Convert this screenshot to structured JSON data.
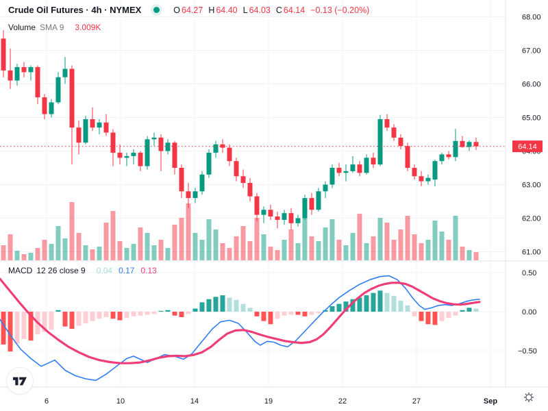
{
  "header": {
    "title": "Crude Oil Futures · 4h · NYMEX",
    "ohlc": {
      "o_label": "O",
      "o": "64.27",
      "h_label": "H",
      "h": "64.40",
      "l_label": "L",
      "l": "64.03",
      "c_label": "C",
      "c": "64.14",
      "change": "−0.13 (−0.20%)"
    }
  },
  "volume_row": {
    "label": "Volume",
    "sma_label": "SMA 9",
    "value": "3.009K"
  },
  "macd_row": {
    "label": "MACD",
    "params": "12 26 close 9",
    "hist_value": "0.04",
    "macd_value": "0.17",
    "signal_value": "0.13"
  },
  "price_scale": {
    "ticks": [
      "68.00",
      "67.00",
      "66.00",
      "65.00",
      "64.00",
      "63.00",
      "62.00",
      "61.00"
    ],
    "last_price": "64.14"
  },
  "macd_scale": {
    "ticks": [
      "0.50",
      "0.00",
      "−0.50"
    ]
  },
  "time_scale": {
    "labels": [
      "6",
      "10",
      "14",
      "19",
      "22",
      "27",
      "Sep"
    ]
  },
  "colors": {
    "up": "#089981",
    "down": "#f23645",
    "vol_up": "rgba(8,153,129,0.5)",
    "vol_down": "rgba(242,54,69,0.5)",
    "hist_grow_above": "#26A69A",
    "hist_fall_above": "#B2DFDB",
    "hist_grow_below": "#FF5252",
    "hist_fall_below": "#FFCDD2",
    "macd_line": "#2e7df6",
    "signal_line": "#ef3d77",
    "grid": "#f0f3fa",
    "separator": "#e0e3eb",
    "text_primary": "#131722",
    "text_secondary": "#787b86",
    "badge_bg": "#f23645",
    "badge_text": "#ffffff",
    "dot": "#089981"
  },
  "chart_data": {
    "type": "candlestick",
    "symbol": "Crude Oil Futures",
    "interval": "4h",
    "exchange": "NYMEX",
    "title": "Crude Oil Futures · 4h · NYMEX",
    "last": {
      "open": 64.27,
      "high": 64.4,
      "low": 64.03,
      "close": 64.14,
      "change": -0.13,
      "change_pct": -0.2
    },
    "last_price_line": 64.14,
    "grid": true,
    "price_axis": {
      "ticks": [
        68,
        67,
        66,
        65,
        64,
        63,
        62,
        61
      ],
      "ylim": [
        60.7,
        68.5
      ]
    },
    "macd_axis": {
      "ticks": [
        0.5,
        0.0,
        -0.5
      ],
      "ylim": [
        -0.95,
        0.6
      ]
    },
    "time_axis": {
      "labels": [
        "6",
        "10",
        "14",
        "19",
        "22",
        "27",
        "Sep"
      ]
    },
    "candles": [
      [
        67.35,
        67.6,
        66.2,
        66.4
      ],
      [
        66.4,
        67.05,
        65.85,
        66.1
      ],
      [
        66.1,
        66.6,
        65.95,
        66.5
      ],
      [
        66.5,
        66.65,
        66.2,
        66.35
      ],
      [
        66.35,
        66.55,
        66.1,
        66.5
      ],
      [
        66.5,
        66.55,
        65.4,
        65.6
      ],
      [
        65.6,
        65.7,
        64.95,
        65.1
      ],
      [
        65.1,
        65.55,
        65.0,
        65.45
      ],
      [
        65.45,
        66.35,
        65.4,
        66.2
      ],
      [
        66.2,
        66.8,
        66.0,
        66.45
      ],
      [
        66.45,
        66.55,
        63.6,
        64.7
      ],
      [
        64.7,
        64.9,
        63.9,
        64.25
      ],
      [
        64.25,
        65.05,
        64.2,
        64.95
      ],
      [
        64.95,
        65.3,
        64.6,
        64.7
      ],
      [
        64.7,
        64.95,
        64.5,
        64.85
      ],
      [
        64.85,
        65.1,
        64.45,
        64.55
      ],
      [
        64.55,
        64.65,
        63.55,
        63.95
      ],
      [
        63.95,
        64.2,
        63.6,
        63.8
      ],
      [
        63.8,
        63.95,
        63.55,
        63.85
      ],
      [
        63.85,
        64.05,
        63.6,
        63.95
      ],
      [
        63.95,
        64.0,
        63.4,
        63.55
      ],
      [
        63.55,
        64.45,
        63.45,
        64.35
      ],
      [
        64.35,
        64.55,
        64.15,
        64.4
      ],
      [
        64.4,
        64.5,
        63.4,
        64.0
      ],
      [
        64.0,
        64.35,
        63.9,
        64.25
      ],
      [
        64.25,
        64.3,
        63.3,
        63.5
      ],
      [
        63.5,
        63.6,
        62.6,
        62.8
      ],
      [
        62.8,
        63.05,
        62.3,
        62.6
      ],
      [
        62.6,
        62.9,
        62.45,
        62.8
      ],
      [
        62.8,
        63.4,
        62.7,
        63.3
      ],
      [
        63.3,
        64.05,
        63.2,
        63.95
      ],
      [
        63.95,
        64.3,
        63.8,
        64.2
      ],
      [
        64.2,
        64.35,
        63.95,
        64.1
      ],
      [
        64.1,
        64.2,
        63.55,
        63.7
      ],
      [
        63.7,
        63.8,
        63.1,
        63.25
      ],
      [
        63.25,
        63.45,
        62.9,
        63.05
      ],
      [
        63.05,
        63.2,
        62.5,
        62.65
      ],
      [
        62.65,
        62.75,
        61.9,
        62.1
      ],
      [
        62.1,
        62.35,
        61.85,
        62.25
      ],
      [
        62.25,
        62.4,
        61.95,
        62.05
      ],
      [
        62.05,
        62.2,
        61.7,
        61.95
      ],
      [
        61.95,
        62.25,
        61.8,
        62.15
      ],
      [
        62.15,
        62.3,
        61.65,
        61.85
      ],
      [
        61.85,
        62.1,
        61.75,
        62.0
      ],
      [
        62.0,
        62.7,
        61.95,
        62.6
      ],
      [
        62.6,
        62.75,
        62.1,
        62.25
      ],
      [
        62.25,
        62.9,
        62.2,
        62.8
      ],
      [
        62.8,
        63.1,
        62.6,
        63.0
      ],
      [
        63.0,
        63.6,
        62.9,
        63.5
      ],
      [
        63.5,
        63.65,
        63.25,
        63.35
      ],
      [
        63.35,
        63.6,
        63.1,
        63.4
      ],
      [
        63.4,
        63.85,
        63.35,
        63.6
      ],
      [
        63.6,
        63.7,
        63.25,
        63.35
      ],
      [
        63.35,
        63.9,
        63.3,
        63.8
      ],
      [
        63.8,
        63.95,
        63.5,
        63.6
      ],
      [
        63.6,
        65.08,
        63.55,
        64.95
      ],
      [
        64.95,
        65.1,
        64.6,
        64.7
      ],
      [
        64.7,
        64.8,
        64.3,
        64.4
      ],
      [
        64.4,
        64.5,
        64.05,
        64.15
      ],
      [
        64.15,
        64.25,
        63.4,
        63.5
      ],
      [
        63.5,
        63.6,
        63.15,
        63.25
      ],
      [
        63.25,
        63.4,
        62.95,
        63.1
      ],
      [
        63.1,
        63.3,
        63.0,
        63.2
      ],
      [
        63.15,
        63.75,
        62.95,
        63.7
      ],
      [
        63.7,
        63.95,
        63.6,
        63.9
      ],
      [
        63.9,
        64.0,
        63.75,
        63.82
      ],
      [
        63.82,
        64.66,
        63.7,
        64.3
      ],
      [
        64.3,
        64.45,
        64.1,
        64.12
      ],
      [
        64.12,
        64.32,
        64.0,
        64.27
      ],
      [
        64.27,
        64.4,
        64.03,
        64.14
      ]
    ],
    "volume_k": [
      2.2,
      3.8,
      1.4,
      0.9,
      1.1,
      1.8,
      3.0,
      2.4,
      5.0,
      3.2,
      8.5,
      4.0,
      2.2,
      1.6,
      2.0,
      5.5,
      7.2,
      2.8,
      1.8,
      2.4,
      4.8,
      4.0,
      2.2,
      3.0,
      1.8,
      5.2,
      6.2,
      8.3,
      4.0,
      3.0,
      6.0,
      4.5,
      2.5,
      1.8,
      3.5,
      5.0,
      2.8,
      6.2,
      3.8,
      2.0,
      1.5,
      3.0,
      4.5,
      2.5,
      7.0,
      3.5,
      2.8,
      4.8,
      6.0,
      3.0,
      2.2,
      4.0,
      6.8,
      2.5,
      3.5,
      6.2,
      5.5,
      3.0,
      4.5,
      6.5,
      3.8,
      2.5,
      3.0,
      5.8,
      4.2,
      3.0,
      6.5,
      2.0,
      1.5,
      1.2
    ],
    "volume_sma_k": 3.009,
    "macd": {
      "fast": 12,
      "slow": 26,
      "source": "close",
      "signal": 9,
      "histogram": [
        -0.42,
        -0.51,
        -0.41,
        -0.35,
        -0.37,
        -0.29,
        -0.26,
        -0.23,
        0.02,
        -0.19,
        -0.22,
        -0.18,
        -0.15,
        -0.12,
        -0.09,
        -0.07,
        -0.09,
        -0.11,
        -0.08,
        -0.06,
        -0.05,
        -0.04,
        -0.03,
        0.01,
        0.02,
        -0.05,
        -0.07,
        -0.03,
        0.04,
        0.12,
        0.16,
        0.19,
        0.21,
        0.18,
        0.15,
        0.1,
        0.05,
        -0.06,
        -0.12,
        -0.16,
        -0.09,
        -0.05,
        -0.04,
        -0.04,
        -0.06,
        -0.04,
        -0.02,
        0.02,
        0.07,
        0.1,
        0.13,
        0.16,
        0.18,
        0.21,
        0.24,
        0.27,
        0.24,
        0.2,
        0.14,
        0.08,
        -0.06,
        -0.12,
        -0.16,
        -0.17,
        -0.12,
        -0.08,
        -0.05,
        0.02,
        0.05,
        0.04
      ],
      "macd_line": [
        [
          0,
          -0.1
        ],
        [
          15,
          -0.3
        ],
        [
          30,
          -0.48
        ],
        [
          45,
          -0.6
        ],
        [
          60,
          -0.7
        ],
        [
          80,
          -0.62
        ],
        [
          95,
          -0.75
        ],
        [
          110,
          -0.82
        ],
        [
          125,
          -0.86
        ],
        [
          140,
          -0.88
        ],
        [
          155,
          -0.8
        ],
        [
          170,
          -0.7
        ],
        [
          185,
          -0.6
        ],
        [
          195,
          -0.57
        ],
        [
          205,
          -0.61
        ],
        [
          215,
          -0.65
        ],
        [
          228,
          -0.6
        ],
        [
          240,
          -0.55
        ],
        [
          255,
          -0.57
        ],
        [
          268,
          -0.61
        ],
        [
          280,
          -0.54
        ],
        [
          295,
          -0.38
        ],
        [
          310,
          -0.22
        ],
        [
          322,
          -0.13
        ],
        [
          335,
          -0.11
        ],
        [
          348,
          -0.15
        ],
        [
          360,
          -0.26
        ],
        [
          372,
          -0.38
        ],
        [
          380,
          -0.43
        ],
        [
          390,
          -0.38
        ],
        [
          400,
          -0.39
        ],
        [
          410,
          -0.43
        ],
        [
          420,
          -0.45
        ],
        [
          432,
          -0.37
        ],
        [
          445,
          -0.25
        ],
        [
          458,
          -0.13
        ],
        [
          470,
          -0.02
        ],
        [
          482,
          0.08
        ],
        [
          495,
          0.18
        ],
        [
          510,
          0.27
        ],
        [
          525,
          0.35
        ],
        [
          540,
          0.41
        ],
        [
          555,
          0.45
        ],
        [
          568,
          0.46
        ],
        [
          580,
          0.41
        ],
        [
          592,
          0.3
        ],
        [
          602,
          0.18
        ],
        [
          612,
          0.08
        ],
        [
          620,
          0.03
        ],
        [
          630,
          0.05
        ],
        [
          640,
          0.08
        ],
        [
          650,
          0.09
        ],
        [
          660,
          0.08
        ],
        [
          670,
          0.1
        ],
        [
          680,
          0.13
        ],
        [
          690,
          0.15
        ],
        [
          700,
          0.16
        ]
      ],
      "signal_line": [
        [
          0,
          0.42
        ],
        [
          15,
          0.26
        ],
        [
          30,
          0.1
        ],
        [
          42,
          -0.02
        ],
        [
          55,
          -0.14
        ],
        [
          70,
          -0.26
        ],
        [
          85,
          -0.36
        ],
        [
          100,
          -0.45
        ],
        [
          115,
          -0.52
        ],
        [
          130,
          -0.58
        ],
        [
          145,
          -0.62
        ],
        [
          160,
          -0.645
        ],
        [
          175,
          -0.66
        ],
        [
          190,
          -0.66
        ],
        [
          205,
          -0.65
        ],
        [
          220,
          -0.62
        ],
        [
          232,
          -0.59
        ],
        [
          245,
          -0.57
        ],
        [
          258,
          -0.565
        ],
        [
          270,
          -0.57
        ],
        [
          282,
          -0.555
        ],
        [
          295,
          -0.52
        ],
        [
          308,
          -0.45
        ],
        [
          320,
          -0.36
        ],
        [
          332,
          -0.28
        ],
        [
          344,
          -0.24
        ],
        [
          356,
          -0.235
        ],
        [
          368,
          -0.26
        ],
        [
          380,
          -0.295
        ],
        [
          392,
          -0.325
        ],
        [
          404,
          -0.35
        ],
        [
          416,
          -0.375
        ],
        [
          428,
          -0.39
        ],
        [
          440,
          -0.4
        ],
        [
          452,
          -0.39
        ],
        [
          462,
          -0.355
        ],
        [
          472,
          -0.29
        ],
        [
          482,
          -0.2
        ],
        [
          492,
          -0.1
        ],
        [
          502,
          0.0
        ],
        [
          512,
          0.09
        ],
        [
          522,
          0.17
        ],
        [
          532,
          0.24
        ],
        [
          542,
          0.29
        ],
        [
          552,
          0.33
        ],
        [
          562,
          0.355
        ],
        [
          572,
          0.37
        ],
        [
          582,
          0.37
        ],
        [
          592,
          0.355
        ],
        [
          602,
          0.32
        ],
        [
          612,
          0.27
        ],
        [
          622,
          0.22
        ],
        [
          632,
          0.17
        ],
        [
          642,
          0.135
        ],
        [
          652,
          0.11
        ],
        [
          662,
          0.095
        ],
        [
          672,
          0.09
        ],
        [
          682,
          0.1
        ],
        [
          692,
          0.115
        ],
        [
          700,
          0.125
        ]
      ]
    }
  }
}
